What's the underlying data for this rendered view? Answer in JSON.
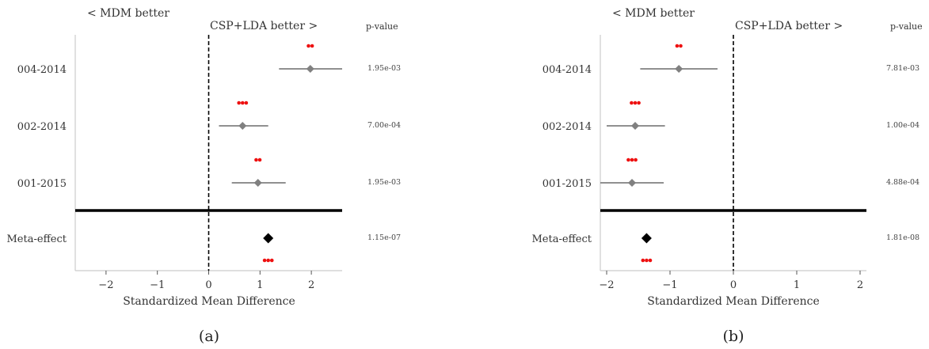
{
  "figure": {
    "panels": [
      {
        "caption": "(a)",
        "left_label": "< MDM better",
        "right_label": "CSP+LDA better >",
        "pvalue_header": "p-value",
        "chart_data": {
          "type": "scatter",
          "subtype": "forest-plot",
          "xlabel": "Standardized Mean Difference",
          "xlim": [
            -2.6,
            2.6
          ],
          "xticks": [
            -2,
            -1,
            0,
            1,
            2
          ],
          "xtick_labels": [
            "−2",
            "−1",
            "0",
            "1",
            "2"
          ],
          "reference_line_x": 0,
          "grid": false,
          "studies": [
            {
              "label": "004-2014",
              "effect": 1.98,
              "ci": [
                1.37,
                2.6
              ],
              "p_value": "1.95e-03",
              "stars": "**"
            },
            {
              "label": "002-2014",
              "effect": 0.66,
              "ci": [
                0.2,
                1.16
              ],
              "p_value": "7.00e-04",
              "stars": "***"
            },
            {
              "label": "001-2015",
              "effect": 0.96,
              "ci": [
                0.45,
                1.5
              ],
              "p_value": "1.95e-03",
              "stars": "**"
            }
          ],
          "meta": {
            "label": "Meta-effect",
            "effect": 1.16,
            "p_value": "1.15e-07",
            "stars": "***"
          }
        }
      },
      {
        "caption": "(b)",
        "left_label": "< MDM better",
        "right_label": "CSP+LDA better >",
        "pvalue_header": "p-value",
        "chart_data": {
          "type": "scatter",
          "subtype": "forest-plot",
          "xlabel": "Standardized Mean Difference",
          "xlim": [
            -2.1,
            2.1
          ],
          "xticks": [
            -2,
            -1,
            0,
            1,
            2
          ],
          "xtick_labels": [
            "−2",
            "−1",
            "0",
            "1",
            "2"
          ],
          "reference_line_x": 0,
          "grid": false,
          "studies": [
            {
              "label": "004-2014",
              "effect": -0.86,
              "ci": [
                -1.47,
                -0.25
              ],
              "p_value": "7.81e-03",
              "stars": "**"
            },
            {
              "label": "002-2014",
              "effect": -1.55,
              "ci": [
                -2.0,
                -1.08
              ],
              "p_value": "1.00e-04",
              "stars": "***"
            },
            {
              "label": "001-2015",
              "effect": -1.6,
              "ci": [
                -2.1,
                -1.1
              ],
              "p_value": "4.88e-04",
              "stars": "***"
            }
          ],
          "meta": {
            "label": "Meta-effect",
            "effect": -1.37,
            "p_value": "1.81e-08",
            "stars": "***"
          }
        }
      }
    ],
    "colors": {
      "study_marker": "#808080",
      "meta_marker": "#000000",
      "stars": "#ee1111",
      "axis": "#cccccc",
      "separator": "#000000"
    }
  }
}
